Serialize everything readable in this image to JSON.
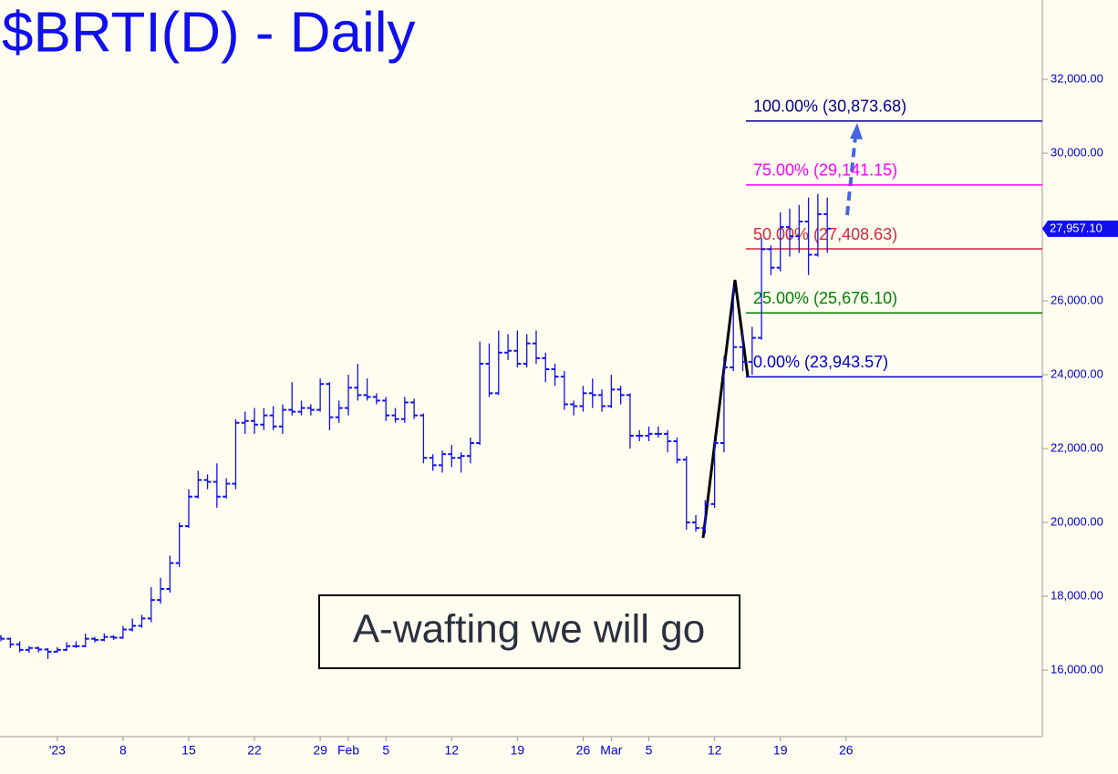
{
  "chart_data": {
    "type": "ohlc",
    "title": "$BRTI(D) - Daily",
    "color": "#1010ee",
    "x": [
      -6,
      -5,
      -4,
      -3,
      -2,
      -1,
      0,
      1,
      2,
      3,
      4,
      5,
      6,
      7,
      8,
      9,
      10,
      11,
      12,
      13,
      14,
      15,
      16,
      17,
      18,
      19,
      20,
      21,
      22,
      23,
      24,
      25,
      26,
      27,
      28,
      29,
      30,
      31,
      32,
      33,
      34,
      35,
      36,
      37,
      38,
      39,
      40,
      41,
      42,
      43,
      44,
      45,
      46,
      47,
      48,
      49,
      50,
      51,
      52,
      53,
      54,
      55,
      56,
      57,
      58,
      59,
      60,
      61,
      62,
      63,
      64,
      65,
      66,
      67,
      68,
      69,
      70,
      71,
      72,
      73,
      74,
      75,
      76,
      77,
      78,
      79,
      80,
      81,
      82
    ],
    "open": [
      16900,
      16850,
      16700,
      16550,
      16600,
      16560,
      16500,
      16550,
      16650,
      16650,
      16850,
      16820,
      16900,
      16880,
      17100,
      17200,
      17400,
      17900,
      18200,
      18900,
      19900,
      20700,
      21150,
      21100,
      20700,
      21050,
      22700,
      22750,
      22650,
      22900,
      22600,
      23050,
      23000,
      23100,
      23050,
      23750,
      22850,
      23100,
      23650,
      23450,
      23400,
      23300,
      22900,
      22800,
      23250,
      22900,
      21750,
      21550,
      21850,
      21750,
      21800,
      22150,
      24300,
      23500,
      24600,
      24650,
      24300,
      24850,
      24450,
      24150,
      23950,
      23200,
      23150,
      23500,
      23450,
      23150,
      23600,
      23450,
      22350,
      22350,
      22400,
      22400,
      22200,
      21700,
      20000,
      19850,
      20500,
      22150,
      24200,
      24750,
      24350,
      25000,
      27400,
      26900,
      28000,
      27750,
      28150,
      27250,
      28350
    ],
    "high": [
      16950,
      16880,
      16780,
      16650,
      16640,
      16600,
      16620,
      16760,
      16780,
      16990,
      16900,
      17000,
      16950,
      17200,
      17400,
      17500,
      18250,
      18500,
      19100,
      20000,
      20900,
      21400,
      21300,
      21600,
      21200,
      22800,
      23000,
      23100,
      23100,
      23150,
      23200,
      23800,
      23300,
      23200,
      23900,
      23800,
      23300,
      24000,
      24300,
      23900,
      23500,
      23400,
      23100,
      23400,
      23350,
      22950,
      21850,
      21950,
      22100,
      21900,
      22300,
      24900,
      24850,
      25200,
      25100,
      25200,
      25100,
      25200,
      24600,
      24300,
      24100,
      23300,
      23700,
      23900,
      23600,
      24000,
      23700,
      23500,
      22500,
      22600,
      22600,
      22500,
      22300,
      21800,
      20200,
      20600,
      22200,
      24500,
      26400,
      25200,
      25300,
      27700,
      27500,
      28400,
      28500,
      28600,
      28800,
      28900,
      28800
    ],
    "low": [
      16780,
      16600,
      16480,
      16470,
      16480,
      16300,
      16480,
      16520,
      16600,
      16620,
      16750,
      16780,
      16820,
      16850,
      17050,
      17150,
      17300,
      17800,
      18100,
      18800,
      19850,
      20650,
      20900,
      20400,
      20650,
      20900,
      22400,
      22400,
      22500,
      22500,
      22400,
      22900,
      22900,
      22900,
      23000,
      22500,
      22700,
      22900,
      23300,
      23300,
      23200,
      22750,
      22700,
      22700,
      22800,
      21600,
      21400,
      21350,
      21500,
      21350,
      21600,
      22100,
      23400,
      23450,
      24400,
      24200,
      24200,
      24300,
      23800,
      23700,
      23050,
      22900,
      23000,
      23100,
      23000,
      23100,
      23200,
      22000,
      22200,
      22200,
      22300,
      21900,
      21600,
      19800,
      19750,
      19700,
      20400,
      21900,
      24100,
      24100,
      24000,
      24950,
      26700,
      26800,
      27200,
      27300,
      26700,
      27200,
      27300
    ],
    "close": [
      16850,
      16700,
      16550,
      16600,
      16560,
      16500,
      16550,
      16650,
      16650,
      16850,
      16820,
      16900,
      16880,
      17100,
      17200,
      17400,
      17900,
      18200,
      18900,
      19900,
      20700,
      21150,
      21100,
      20700,
      21050,
      22700,
      22750,
      22650,
      22900,
      22600,
      23050,
      23000,
      23100,
      23050,
      23750,
      22850,
      23100,
      23650,
      23450,
      23400,
      23300,
      22900,
      22800,
      23250,
      22900,
      21750,
      21550,
      21850,
      21750,
      21800,
      22150,
      24300,
      23500,
      24600,
      24650,
      24300,
      24850,
      24450,
      24150,
      23950,
      23200,
      23150,
      23500,
      23450,
      23150,
      23600,
      23450,
      22350,
      22350,
      22400,
      22400,
      22200,
      21700,
      20000,
      19850,
      20500,
      22150,
      24200,
      24750,
      24350,
      25000,
      27400,
      26900,
      28000,
      27750,
      28150,
      27250,
      28350,
      27957
    ],
    "xlim": [
      -6.1,
      104.9
    ],
    "ylim": [
      14200,
      34150
    ],
    "xticks": [
      {
        "value": 0,
        "label": "'23"
      },
      {
        "value": 7,
        "label": "8"
      },
      {
        "value": 14,
        "label": "15"
      },
      {
        "value": 21,
        "label": "22"
      },
      {
        "value": 28,
        "label": "29"
      },
      {
        "value": 31,
        "label": "Feb"
      },
      {
        "value": 35,
        "label": "5"
      },
      {
        "value": 42,
        "label": "12"
      },
      {
        "value": 49,
        "label": "19"
      },
      {
        "value": 56,
        "label": "26"
      },
      {
        "value": 59,
        "label": "Mar"
      },
      {
        "value": 63,
        "label": "5"
      },
      {
        "value": 70,
        "label": "12"
      },
      {
        "value": 77,
        "label": "19"
      },
      {
        "value": 84,
        "label": "26"
      }
    ],
    "yticks": [
      {
        "value": 16000,
        "label": "16,000.00"
      },
      {
        "value": 18000,
        "label": "18,000.00"
      },
      {
        "value": 20000,
        "label": "20,000.00"
      },
      {
        "value": 22000,
        "label": "22,000.00"
      },
      {
        "value": 24000,
        "label": "24,000.00"
      },
      {
        "value": 26000,
        "label": "26,000.00"
      },
      {
        "value": 28000,
        "label": "28,000.00"
      },
      {
        "value": 30000,
        "label": "30,000.00"
      },
      {
        "value": 32000,
        "label": "32,000.00"
      }
    ],
    "levels": [
      {
        "value": 30873.68,
        "label": "100.00% (30,873.68)",
        "color": "#00008b"
      },
      {
        "value": 29141.15,
        "label": "75.00% (29,141.15)",
        "color": "#ff00ff"
      },
      {
        "value": 27408.63,
        "label": "50.00% (27,408.63)",
        "color": "#cc2a3c"
      },
      {
        "value": 25676.1,
        "label": "25.00% (25,676.10)",
        "color": "#008000"
      },
      {
        "value": 23943.57,
        "label": "0.00% (23,943.57)",
        "color": "#0000cc"
      }
    ],
    "last_price": {
      "value": 27957.1,
      "label": "27,957.10"
    },
    "annotation": "A-wafting we will go"
  }
}
